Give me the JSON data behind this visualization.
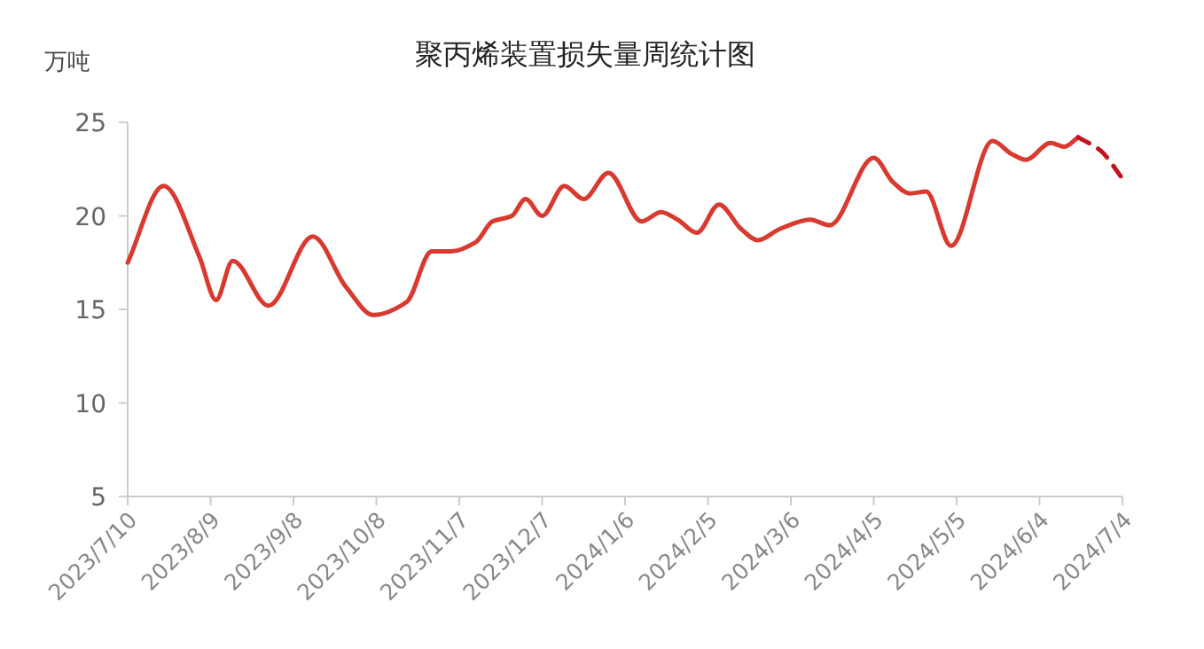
{
  "chart_data": {
    "type": "line",
    "title": "聚丙烯装置损失量周统计图",
    "ylabel": "万吨",
    "xlim": [
      "2023-07-10",
      "2024-07-04"
    ],
    "ylim": [
      5,
      25
    ],
    "yticks": [
      5,
      10,
      15,
      20,
      25
    ],
    "xticks": [
      {
        "value": "2023-07-10",
        "label": "2023/7/10"
      },
      {
        "value": "2023-08-09",
        "label": "2023/8/9"
      },
      {
        "value": "2023-09-08",
        "label": "2023/9/8"
      },
      {
        "value": "2023-10-08",
        "label": "2023/10/8"
      },
      {
        "value": "2023-11-07",
        "label": "2023/11/7"
      },
      {
        "value": "2023-12-07",
        "label": "2023/12/7"
      },
      {
        "value": "2024-01-06",
        "label": "2024/1/6"
      },
      {
        "value": "2024-02-05",
        "label": "2024/2/5"
      },
      {
        "value": "2024-03-06",
        "label": "2024/3/6"
      },
      {
        "value": "2024-04-05",
        "label": "2024/4/5"
      },
      {
        "value": "2024-05-05",
        "label": "2024/5/5"
      },
      {
        "value": "2024-06-04",
        "label": "2024/6/4"
      },
      {
        "value": "2024-07-04",
        "label": "2024/7/4"
      }
    ],
    "grid": false,
    "marker": "none",
    "series": [
      {
        "color": "#d93a2f",
        "line_style": "solid",
        "x": [
          "2023-07-10",
          "2023-07-23",
          "2023-08-05",
          "2023-08-11",
          "2023-08-17",
          "2023-08-30",
          "2023-09-15",
          "2023-09-27",
          "2023-10-07",
          "2023-10-19",
          "2023-10-28",
          "2023-11-04",
          "2023-11-13",
          "2023-11-19",
          "2023-11-26",
          "2023-12-01",
          "2023-12-07",
          "2023-12-15",
          "2023-12-22",
          "2023-12-31",
          "2024-01-12",
          "2024-01-19",
          "2024-01-25",
          "2024-02-01",
          "2024-02-09",
          "2024-02-17",
          "2024-02-23",
          "2024-03-02",
          "2024-03-13",
          "2024-03-20",
          "2024-04-05",
          "2024-04-12",
          "2024-04-18",
          "2024-04-24",
          "2024-05-03",
          "2024-05-18",
          "2024-05-25",
          "2024-05-30",
          "2024-06-08",
          "2024-06-13",
          "2024-06-18"
        ],
        "values": [
          17.5,
          21.6,
          17.8,
          15.5,
          17.6,
          15.2,
          18.9,
          16.2,
          14.7,
          15.4,
          18.1,
          18.1,
          18.6,
          19.7,
          20.0,
          20.9,
          20.0,
          21.6,
          20.9,
          22.3,
          19.7,
          20.2,
          19.8,
          19.1,
          20.6,
          19.3,
          18.7,
          19.3,
          19.8,
          19.5,
          23.1,
          21.8,
          21.2,
          21.3,
          18.4,
          24.0,
          23.3,
          23.0,
          23.9,
          23.7,
          24.2
        ]
      },
      {
        "color": "#c0141e",
        "line_style": "dashed",
        "x": [
          "2024-06-18",
          "2024-06-26",
          "2024-07-04"
        ],
        "values": [
          24.2,
          23.5,
          22.0
        ]
      }
    ]
  }
}
